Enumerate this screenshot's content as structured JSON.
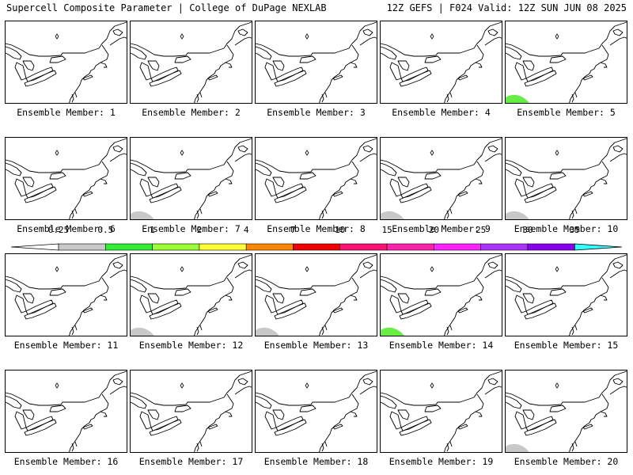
{
  "header": {
    "title_left": "Supercell Composite Parameter | College of DuPage NEXLAB",
    "title_right": "12Z GEFS | F024 Valid: 12Z SUN JUN 08 2025"
  },
  "members": [
    {
      "label": "Ensemble Member: 1",
      "shade": null
    },
    {
      "label": "Ensemble Member: 2",
      "shade": null
    },
    {
      "label": "Ensemble Member: 3",
      "shade": null
    },
    {
      "label": "Ensemble Member: 4",
      "shade": null
    },
    {
      "label": "Ensemble Member: 5",
      "shade": "green"
    },
    {
      "label": "Ensemble Member: 6",
      "shade": null
    },
    {
      "label": "Ensemble Member: 7",
      "shade": "gray"
    },
    {
      "label": "Ensemble Member: 8",
      "shade": null
    },
    {
      "label": "Ensemble Member: 9",
      "shade": "gray"
    },
    {
      "label": "Ensemble Member: 10",
      "shade": "gray"
    },
    {
      "label": "Ensemble Member: 11",
      "shade": null
    },
    {
      "label": "Ensemble Member: 12",
      "shade": "gray"
    },
    {
      "label": "Ensemble Member: 13",
      "shade": "gray"
    },
    {
      "label": "Ensemble Member: 14",
      "shade": "green"
    },
    {
      "label": "Ensemble Member: 15",
      "shade": null
    },
    {
      "label": "Ensemble Member: 16",
      "shade": null
    },
    {
      "label": "Ensemble Member: 17",
      "shade": null
    },
    {
      "label": "Ensemble Member: 18",
      "shade": null
    },
    {
      "label": "Ensemble Member: 19",
      "shade": null
    },
    {
      "label": "Ensemble Member: 20",
      "shade": "gray"
    }
  ],
  "colorbar": {
    "labels": [
      "0.25",
      "0.5",
      "1",
      "2",
      "4",
      "7",
      "10",
      "15",
      "20",
      "25",
      "30",
      "35"
    ],
    "colors": [
      "#c8c8c8",
      "#33ee33",
      "#99ff33",
      "#ffff33",
      "#ff8800",
      "#ee0000",
      "#ff1177",
      "#ff22aa",
      "#ff22ff",
      "#aa33ff",
      "#8800ee",
      "#aa55dd",
      "#33ffff"
    ]
  },
  "colors": {
    "shade_gray": "#c8c8c8",
    "shade_green": "#66ee44"
  }
}
